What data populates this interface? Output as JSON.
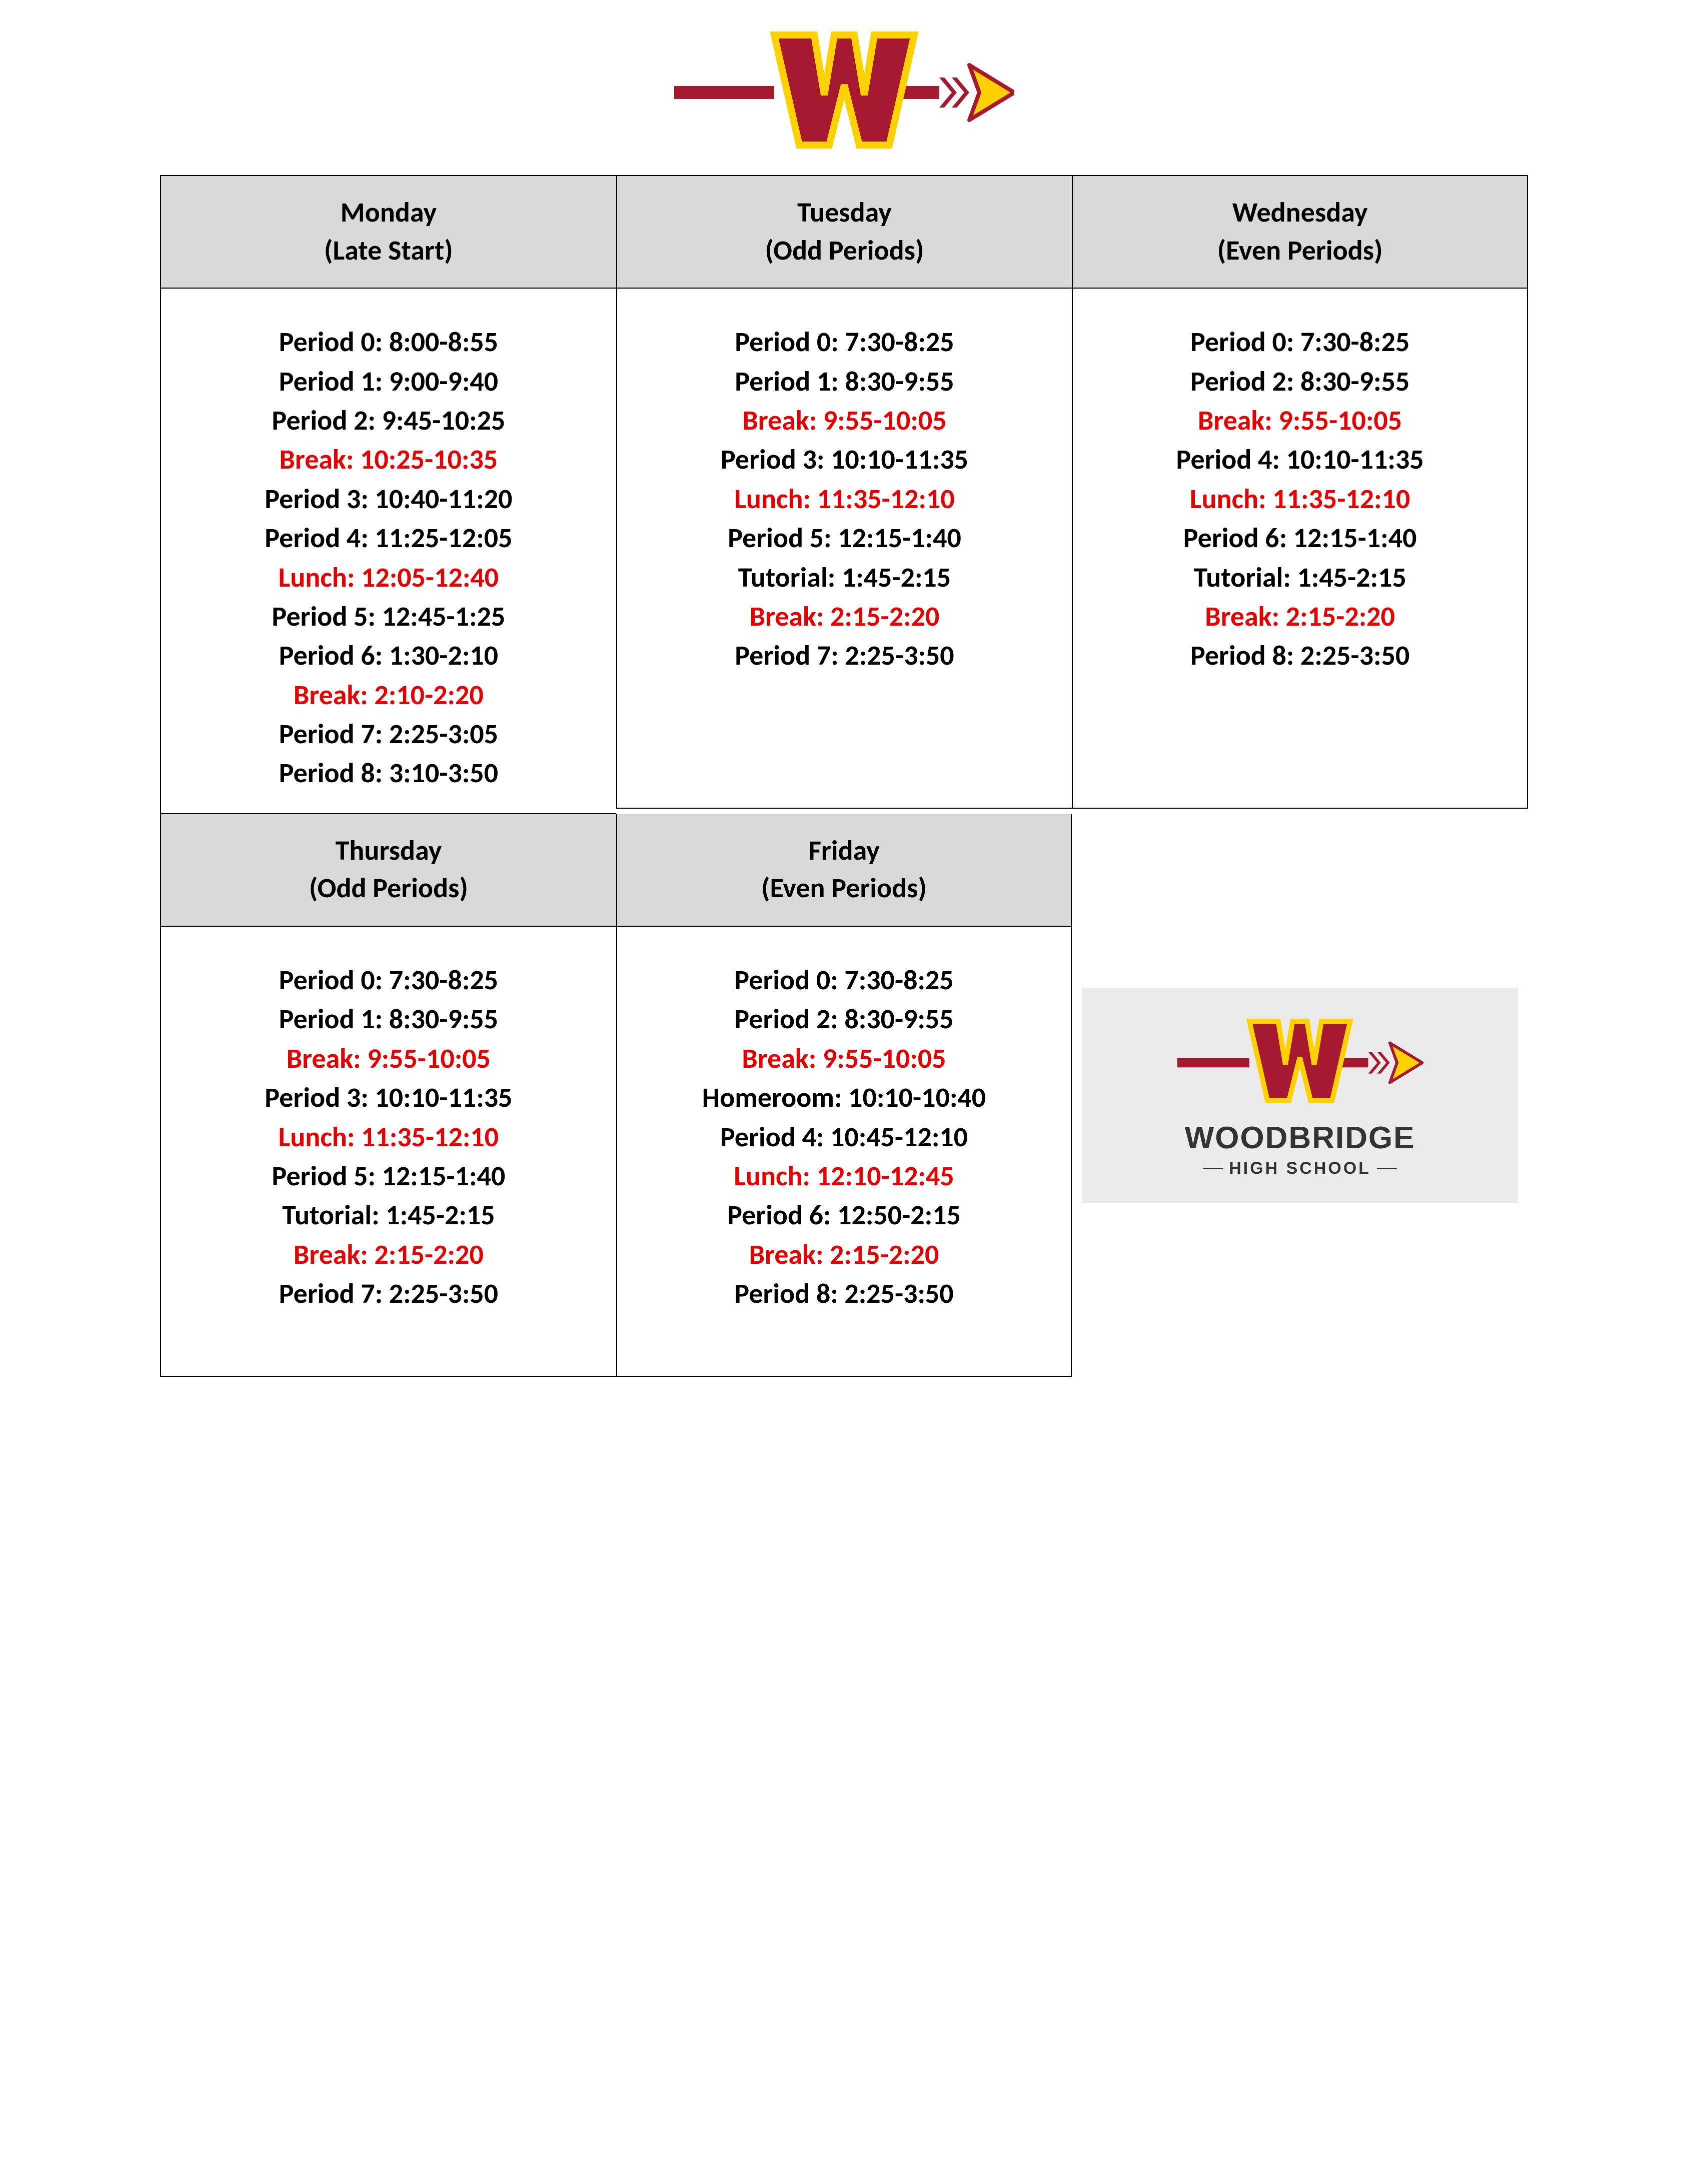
{
  "colors": {
    "header_bg": "#d9d9d9",
    "border": "#000000",
    "text": "#000000",
    "break_text": "#e60000",
    "logo_maroon": "#a6192e",
    "logo_gold": "#ffd100",
    "card_bg": "#ebebeb"
  },
  "days": [
    {
      "name": "Monday",
      "subtitle": "(Late Start)",
      "periods": [
        {
          "label": "Period 0: 8:00-8:55",
          "type": "period"
        },
        {
          "label": "Period 1: 9:00-9:40",
          "type": "period"
        },
        {
          "label": "Period 2: 9:45-10:25",
          "type": "period"
        },
        {
          "label": "Break: 10:25-10:35",
          "type": "break"
        },
        {
          "label": "Period 3: 10:40-11:20",
          "type": "period"
        },
        {
          "label": "Period 4: 11:25-12:05",
          "type": "period"
        },
        {
          "label": "Lunch: 12:05-12:40",
          "type": "break"
        },
        {
          "label": "Period 5: 12:45-1:25",
          "type": "period"
        },
        {
          "label": "Period 6: 1:30-2:10",
          "type": "period"
        },
        {
          "label": "Break: 2:10-2:20",
          "type": "break"
        },
        {
          "label": "Period 7: 2:25-3:05",
          "type": "period"
        },
        {
          "label": "Period 8: 3:10-3:50",
          "type": "period"
        }
      ]
    },
    {
      "name": "Tuesday",
      "subtitle": "(Odd Periods)",
      "periods": [
        {
          "label": "Period 0: 7:30-8:25",
          "type": "period"
        },
        {
          "label": "Period 1: 8:30-9:55",
          "type": "period"
        },
        {
          "label": "Break: 9:55-10:05",
          "type": "break"
        },
        {
          "label": "Period 3: 10:10-11:35",
          "type": "period"
        },
        {
          "label": "Lunch: 11:35-12:10",
          "type": "break"
        },
        {
          "label": "Period 5: 12:15-1:40",
          "type": "period"
        },
        {
          "label": "Tutorial: 1:45-2:15",
          "type": "period"
        },
        {
          "label": "Break: 2:15-2:20",
          "type": "break"
        },
        {
          "label": "Period 7: 2:25-3:50",
          "type": "period"
        }
      ]
    },
    {
      "name": "Wednesday",
      "subtitle": "(Even Periods)",
      "periods": [
        {
          "label": "Period 0: 7:30-8:25",
          "type": "period"
        },
        {
          "label": "Period 2: 8:30-9:55",
          "type": "period"
        },
        {
          "label": "Break: 9:55-10:05",
          "type": "break"
        },
        {
          "label": "Period 4: 10:10-11:35",
          "type": "period"
        },
        {
          "label": "Lunch: 11:35-12:10",
          "type": "break"
        },
        {
          "label": "Period 6: 12:15-1:40",
          "type": "period"
        },
        {
          "label": "Tutorial: 1:45-2:15",
          "type": "period"
        },
        {
          "label": "Break: 2:15-2:20",
          "type": "break"
        },
        {
          "label": "Period 8: 2:25-3:50",
          "type": "period"
        }
      ]
    },
    {
      "name": "Thursday",
      "subtitle": "(Odd Periods)",
      "periods": [
        {
          "label": "Period 0: 7:30-8:25",
          "type": "period"
        },
        {
          "label": "Period 1: 8:30-9:55",
          "type": "period"
        },
        {
          "label": "Break: 9:55-10:05",
          "type": "break"
        },
        {
          "label": "Period 3: 10:10-11:35",
          "type": "period"
        },
        {
          "label": "Lunch: 11:35-12:10",
          "type": "break"
        },
        {
          "label": "Period 5: 12:15-1:40",
          "type": "period"
        },
        {
          "label": "Tutorial: 1:45-2:15",
          "type": "period"
        },
        {
          "label": "Break: 2:15-2:20",
          "type": "break"
        },
        {
          "label": "Period 7: 2:25-3:50",
          "type": "period"
        }
      ]
    },
    {
      "name": "Friday",
      "subtitle": "(Even Periods)",
      "periods": [
        {
          "label": "Period 0: 7:30-8:25",
          "type": "period"
        },
        {
          "label": "Period 2: 8:30-9:55",
          "type": "period"
        },
        {
          "label": "Break: 9:55-10:05",
          "type": "break"
        },
        {
          "label": "Homeroom: 10:10-10:40",
          "type": "period"
        },
        {
          "label": "Period 4: 10:45-12:10",
          "type": "period"
        },
        {
          "label": "Lunch: 12:10-12:45",
          "type": "break"
        },
        {
          "label": "Period 6: 12:50-2:15",
          "type": "period"
        },
        {
          "label": "Break: 2:15-2:20",
          "type": "break"
        },
        {
          "label": "Period 8: 2:25-3:50",
          "type": "period"
        }
      ]
    }
  ],
  "school": {
    "name": "WOODBRIDGE",
    "sub": "HIGH SCHOOL"
  }
}
